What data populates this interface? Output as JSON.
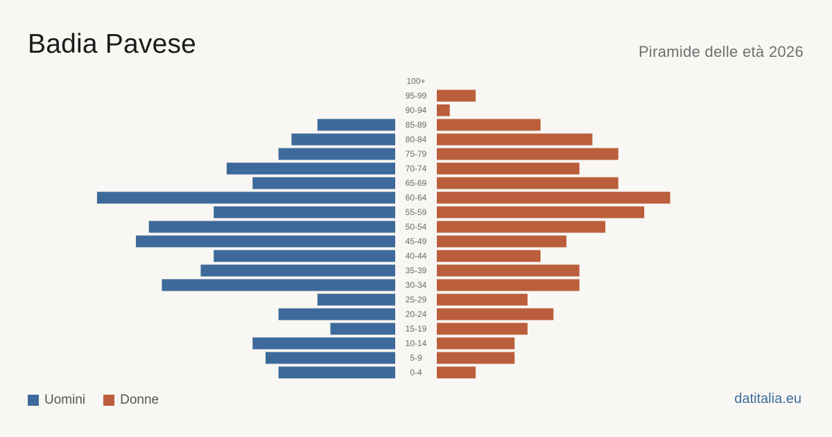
{
  "header": {
    "title": "Badia Pavese",
    "subtitle": "Piramide delle età 2026"
  },
  "legend": {
    "men_label": "Uomini",
    "women_label": "Donne"
  },
  "footer": {
    "source": "datitalia.eu"
  },
  "colors": {
    "men": "#3d6a9a",
    "women": "#bb5e3c",
    "background": "#f9f7f3"
  },
  "chart_data": {
    "type": "bar",
    "orientation": "horizontal-pyramid",
    "categories": [
      "100+",
      "95-99",
      "90-94",
      "85-89",
      "80-84",
      "75-79",
      "70-74",
      "65-69",
      "60-64",
      "55-59",
      "50-54",
      "45-49",
      "40-44",
      "35-39",
      "30-34",
      "25-29",
      "20-24",
      "15-19",
      "10-14",
      "5-9",
      "0-4"
    ],
    "series": [
      {
        "name": "Uomini",
        "values": [
          0,
          0,
          0,
          6,
          8,
          9,
          13,
          11,
          23,
          14,
          19,
          20,
          14,
          15,
          18,
          6,
          9,
          5,
          11,
          10,
          9
        ]
      },
      {
        "name": "Donne",
        "values": [
          0,
          3,
          1,
          8,
          12,
          14,
          11,
          14,
          18,
          16,
          13,
          10,
          8,
          11,
          11,
          7,
          9,
          7,
          6,
          6,
          3
        ]
      }
    ],
    "legend_position": "bottom-left",
    "grid": false
  }
}
